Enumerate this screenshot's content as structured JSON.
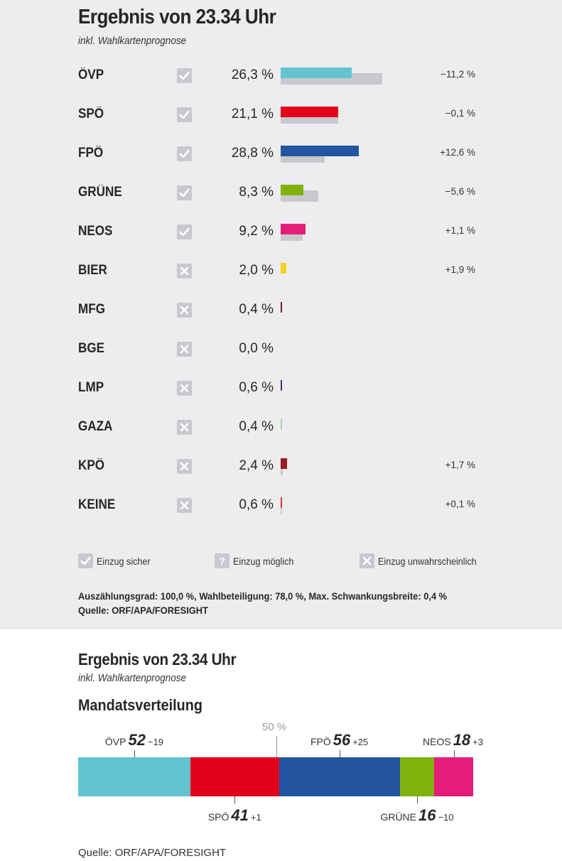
{
  "results": {
    "title": "Ergebnis von 23.34 Uhr",
    "subtitle": "inkl. Wahlkartenprognose"
  },
  "chart_data": [
    {
      "type": "bar",
      "title": "Ergebnis von 23.34 Uhr",
      "subtitle": "inkl. Wahlkartenprognose",
      "unit": "%",
      "categories": [
        "ÖVP",
        "SPÖ",
        "FPÖ",
        "GRÜNE",
        "NEOS",
        "BIER",
        "MFG",
        "BGE",
        "LMP",
        "GAZA",
        "KPÖ",
        "KEINE"
      ],
      "series": [
        {
          "values": [
            26.3,
            21.1,
            28.8,
            8.3,
            9.2,
            2.0,
            0.4,
            0.0,
            0.6,
            0.4,
            2.4,
            0.6
          ]
        },
        {
          "values": [
            37.5,
            21.2,
            16.2,
            13.9,
            8.1,
            null,
            null,
            null,
            null,
            null,
            0.7,
            0.5
          ]
        }
      ],
      "labels": [
        "26,3 %",
        "21,1 %",
        "28,8 %",
        "8,3 %",
        "9,2 %",
        "2,0 %",
        "0,4 %",
        "0,0 %",
        "0,6 %",
        "0,4 %",
        "2,4 %",
        "0,6 %"
      ],
      "changes": [
        "−11,2 %",
        "−0,1 %",
        "+12,6 %",
        "−5,6 %",
        "+1,1 %",
        "+1,9 %",
        "",
        "",
        "",
        "",
        "+1,7 %",
        "+0,1 %"
      ],
      "status": [
        "sicher",
        "sicher",
        "sicher",
        "sicher",
        "sicher",
        "unwahrscheinlich",
        "unwahrscheinlich",
        "unwahrscheinlich",
        "unwahrscheinlich",
        "unwahrscheinlich",
        "unwahrscheinlich",
        "unwahrscheinlich"
      ],
      "colors": [
        "#63c3d1",
        "#e3001b",
        "#2355a0",
        "#7fb20c",
        "#e51d7a",
        "#f5d020",
        "#7a1a3a",
        "#888888",
        "#4a2a7a",
        "#9fd8a8",
        "#9b1b1f",
        "#e3342f"
      ],
      "previous_color": "#c8c9cc",
      "xlim": [
        0,
        40
      ]
    },
    {
      "type": "bar",
      "stacked": true,
      "title": "Ergebnis von 23.34 Uhr",
      "subtitle": "inkl. Wahlkartenprognose",
      "categories": [
        "ÖVP",
        "SPÖ",
        "FPÖ",
        "GRÜNE",
        "NEOS"
      ],
      "values": [
        52,
        41,
        56,
        16,
        18
      ],
      "changes": [
        "−19",
        "+1",
        "+25",
        "−10",
        "+3"
      ],
      "label_side": [
        "top",
        "bottom",
        "top",
        "bottom",
        "top"
      ],
      "colors": [
        "#63c3d1",
        "#e3001b",
        "#2355a0",
        "#7fb20c",
        "#e51d7a"
      ],
      "total": 183,
      "majority_label": "50 %"
    }
  ],
  "legend": {
    "sicher": "Einzug sicher",
    "moeglich": "Einzug möglich",
    "unwahrscheinlich": "Einzug unwahrscheinlich"
  },
  "footnote": {
    "line1": "Auszählungsgrad: 100,0 %, Wahlbeteiligung: 78,0 %, Max. Schwankungsbreite: 0,4 %",
    "line2": "Quelle: ORF/APA/FORESIGHT"
  },
  "seats": {
    "title": "Ergebnis von 23.34 Uhr",
    "subtitle": "inkl. Wahlkartenprognose",
    "heading": "Mandatsverteilung"
  },
  "source2": "Quelle: ORF/APA/FORESIGHT"
}
